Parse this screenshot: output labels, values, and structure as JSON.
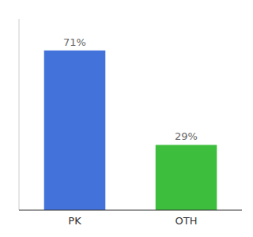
{
  "chart_data": {
    "type": "bar",
    "categories": [
      "PK",
      "OTH"
    ],
    "values": [
      71,
      29
    ],
    "value_labels": [
      "71%",
      "29%"
    ],
    "colors": [
      "#4472db",
      "#3dbf3d"
    ],
    "ylim": [
      0,
      85
    ],
    "data_labels": true,
    "tick_labels": "x",
    "grid": false
  }
}
